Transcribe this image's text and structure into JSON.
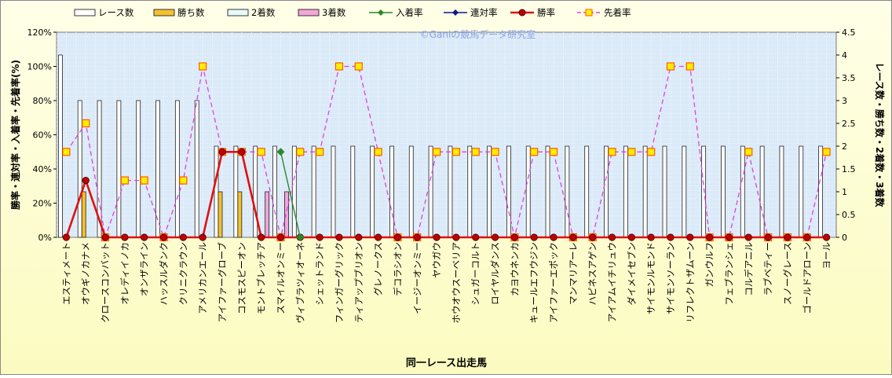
{
  "chart_data": {
    "type": "bar",
    "xlabel": "同一レース出走馬",
    "ylabel_left": "勝率・連対率・入着率・先着率(%)",
    "ylabel_right": "レース数・勝ち数・2着数・3着数",
    "watermark": "©Ganiの競馬データ研究室",
    "y_left_lim": [
      0,
      120
    ],
    "y_left_ticks": [
      "0%",
      "20%",
      "40%",
      "60%",
      "80%",
      "100%",
      "120%"
    ],
    "y_right_lim": [
      0,
      4.5
    ],
    "y_right_ticks": [
      "0",
      "0.5",
      "1",
      "1.5",
      "2",
      "2.5",
      "3",
      "3.5",
      "4",
      "4.5"
    ],
    "grid": true,
    "legend_position": "top",
    "legend": [
      "レース数",
      "勝ち数",
      "2着数",
      "3着数",
      "入着率",
      "連対率",
      "勝率",
      "先着率"
    ],
    "colors": {
      "races": "#ffffff",
      "wins": "#f2c12e",
      "second": "#e6fbf7",
      "third": "#f2a6d9",
      "placed_rate": "#2a8a2a",
      "top2_rate": "#0a1a8a",
      "win_rate": "#e01010",
      "ahead_rate": "#e040e0",
      "plot_bg": "#dbeaf8",
      "outer_bg": "#fbfbc0"
    },
    "categories": [
      "エスティメート",
      "オウギノカナメ",
      "クロースコンバット",
      "オレディイノカ",
      "オンザライン",
      "ハッスルダンク",
      "クリニクラウン",
      "アメリカンエール",
      "アイファーグローブ",
      "コスモスピーオン",
      "モントブレッチア",
      "スマイルオンミー",
      "ヴィブラツィオーネ",
      "シェットランド",
      "フィンガーグリック",
      "ティアップブリオン",
      "グレノークス",
      "デコラシオン",
      "イージーオンミー",
      "ヤウガウ",
      "ホウオウスーベリア",
      "シュガーコルト",
      "ロイヤルダンス",
      "カヨウネンカ",
      "キュールエフウジン",
      "アイファーエポック",
      "マンマリアーレ",
      "ハピネスアゲン",
      "アイアムイチリュウ",
      "ダイメイセブン",
      "サイモンルモンド",
      "サイモンソーラン",
      "リフレクトザムーン",
      "ガンウルフ",
      "フェブランシェ",
      "コルデアニル",
      "ラブベティー",
      "スノーグレース",
      "ゴールドアローン",
      "ヨール"
    ],
    "series": [
      {
        "name": "レース数",
        "values": [
          4,
          3,
          3,
          3,
          3,
          3,
          3,
          3,
          2,
          2,
          2,
          2,
          2,
          2,
          2,
          2,
          2,
          2,
          2,
          2,
          2,
          2,
          2,
          2,
          2,
          2,
          2,
          2,
          2,
          2,
          2,
          2,
          2,
          2,
          2,
          2,
          2,
          2,
          2,
          2
        ]
      },
      {
        "name": "勝ち数",
        "values": [
          0,
          1,
          0,
          0,
          0,
          0,
          0,
          0,
          1,
          1,
          0,
          0,
          0,
          0,
          0,
          0,
          0,
          0,
          0,
          0,
          0,
          0,
          0,
          0,
          0,
          0,
          0,
          0,
          0,
          0,
          0,
          0,
          0,
          0,
          0,
          0,
          0,
          0,
          0,
          0
        ]
      },
      {
        "name": "2着数",
        "values": [
          0,
          0,
          0,
          0,
          0,
          0,
          0,
          0,
          0,
          0,
          0,
          0,
          0,
          0,
          0,
          0,
          0,
          0,
          0,
          0,
          0,
          0,
          0,
          0,
          0,
          0,
          0,
          0,
          0,
          0,
          0,
          0,
          0,
          0,
          0,
          0,
          0,
          0,
          0,
          0
        ]
      },
      {
        "name": "3着数",
        "values": [
          0,
          0,
          0,
          0,
          0,
          0,
          0,
          0,
          0,
          0,
          1,
          1,
          0,
          0,
          0,
          0,
          0,
          0,
          0,
          0,
          0,
          0,
          0,
          0,
          0,
          0,
          0,
          0,
          0,
          0,
          0,
          0,
          0,
          0,
          0,
          0,
          0,
          0,
          0,
          0
        ]
      },
      {
        "name": "入着率",
        "values": [
          null,
          null,
          null,
          null,
          null,
          null,
          null,
          null,
          null,
          null,
          null,
          50,
          0,
          null,
          null,
          null,
          null,
          null,
          null,
          null,
          null,
          null,
          null,
          null,
          null,
          null,
          null,
          null,
          null,
          null,
          null,
          null,
          null,
          null,
          null,
          null,
          null,
          null,
          null,
          null
        ]
      },
      {
        "name": "連対率",
        "values": [
          null,
          null,
          null,
          null,
          null,
          null,
          null,
          null,
          null,
          null,
          null,
          null,
          null,
          null,
          null,
          null,
          null,
          null,
          null,
          null,
          null,
          null,
          null,
          null,
          null,
          null,
          null,
          null,
          null,
          null,
          null,
          null,
          null,
          null,
          null,
          null,
          null,
          null,
          null,
          null
        ]
      },
      {
        "name": "勝率",
        "values": [
          0,
          33.3,
          0,
          0,
          0,
          0,
          0,
          0,
          50,
          50,
          0,
          0,
          0,
          0,
          0,
          0,
          0,
          0,
          0,
          0,
          0,
          0,
          0,
          0,
          0,
          0,
          0,
          0,
          0,
          0,
          0,
          0,
          0,
          0,
          0,
          0,
          0,
          0,
          0,
          0
        ]
      },
      {
        "name": "先着率",
        "values": [
          50,
          66.7,
          0,
          33.3,
          33.3,
          0,
          33.3,
          100,
          50,
          50,
          50,
          0,
          50,
          50,
          100,
          100,
          50,
          0,
          0,
          50,
          50,
          50,
          50,
          0,
          50,
          50,
          0,
          0,
          50,
          50,
          50,
          100,
          100,
          0,
          0,
          50,
          0,
          0,
          0,
          50
        ]
      }
    ]
  }
}
